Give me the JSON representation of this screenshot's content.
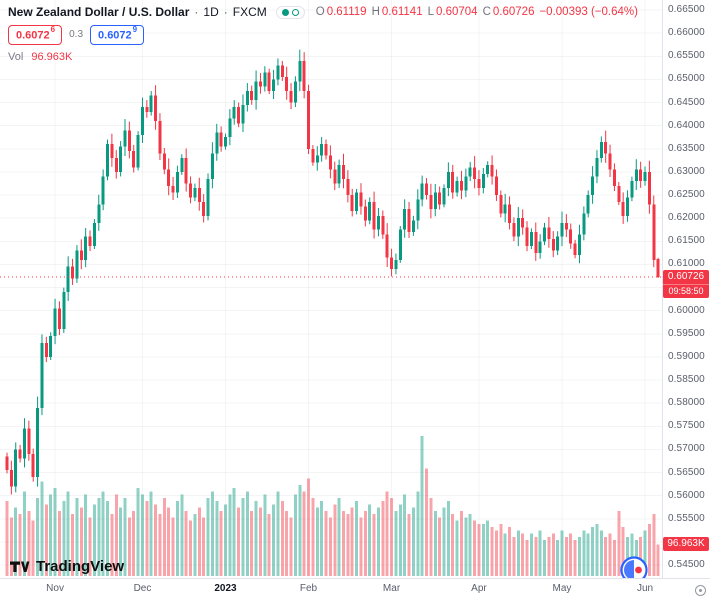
{
  "header": {
    "symbol": "New Zealand Dollar / U.S. Dollar",
    "separator": "·",
    "interval": "1D",
    "exchange": "FXCM",
    "ohlc": {
      "o_label": "O",
      "o": "0.61119",
      "h_label": "H",
      "h": "0.61141",
      "l_label": "L",
      "l": "0.60704",
      "c_label": "C",
      "c": "0.60726",
      "change": "−0.00393 (−0.64%)"
    },
    "bid": {
      "main": "0.6072",
      "sup": "6"
    },
    "spread": "0.3",
    "ask": {
      "main": "0.6072",
      "sup": "9"
    },
    "volume": {
      "label": "Vol",
      "value": "96.963K"
    }
  },
  "price_axis": {
    "labels": [
      "0.66500",
      "0.66000",
      "0.65500",
      "0.65000",
      "0.64500",
      "0.64000",
      "0.63500",
      "0.63000",
      "0.62500",
      "0.62000",
      "0.61500",
      "0.61000",
      "0.60500",
      "0.60000",
      "0.59500",
      "0.59000",
      "0.58500",
      "0.58000",
      "0.57500",
      "0.57000",
      "0.56500",
      "0.56000",
      "0.55500",
      "0.55000",
      "0.54500"
    ],
    "current_price_label": "0.60726",
    "countdown": "09:58:50"
  },
  "volume_axis": {
    "current_volume_label": "96.963K"
  },
  "watermark": {
    "brand": "TradingView"
  },
  "colors": {
    "up": "#089981",
    "down": "#F23645",
    "volume_up": "rgba(8,153,129,0.45)",
    "volume_down": "rgba(242,54,69,0.45)",
    "accent_blue": "#2962FF",
    "tag_bg": "#F23645",
    "grid": "rgba(42,46,57,0.05)",
    "current_price_line": "#F23645"
  },
  "chart_data": {
    "type": "candlestick",
    "title": "New Zealand Dollar / U.S. Dollar",
    "interval": "1D",
    "venue": "FXCM",
    "price_range_visible": [
      0.545,
      0.665
    ],
    "grid_step": 0.005,
    "first_open": 0.5685,
    "closes": [
      0.5655,
      0.562,
      0.57,
      0.568,
      0.5745,
      0.569,
      0.564,
      0.579,
      0.593,
      0.59,
      0.5945,
      0.6005,
      0.596,
      0.604,
      0.6095,
      0.607,
      0.613,
      0.611,
      0.616,
      0.614,
      0.619,
      0.623,
      0.629,
      0.636,
      0.633,
      0.63,
      0.6355,
      0.639,
      0.6345,
      0.631,
      0.638,
      0.644,
      0.643,
      0.6465,
      0.641,
      0.634,
      0.6305,
      0.627,
      0.6255,
      0.63,
      0.633,
      0.6275,
      0.6245,
      0.6265,
      0.6235,
      0.6205,
      0.6285,
      0.634,
      0.6385,
      0.6355,
      0.6375,
      0.6415,
      0.644,
      0.6405,
      0.6445,
      0.6475,
      0.6455,
      0.6495,
      0.6485,
      0.6515,
      0.6475,
      0.65,
      0.653,
      0.6505,
      0.6475,
      0.645,
      0.6495,
      0.654,
      0.6475,
      0.635,
      0.632,
      0.6335,
      0.636,
      0.6335,
      0.6305,
      0.6275,
      0.6315,
      0.6285,
      0.625,
      0.6215,
      0.6255,
      0.6225,
      0.6195,
      0.6235,
      0.6175,
      0.6205,
      0.6165,
      0.6115,
      0.609,
      0.611,
      0.6175,
      0.622,
      0.617,
      0.6195,
      0.624,
      0.6275,
      0.625,
      0.622,
      0.6255,
      0.623,
      0.6265,
      0.63,
      0.6255,
      0.628,
      0.626,
      0.629,
      0.631,
      0.6285,
      0.6265,
      0.6295,
      0.6315,
      0.629,
      0.625,
      0.621,
      0.623,
      0.619,
      0.616,
      0.62,
      0.618,
      0.614,
      0.617,
      0.6125,
      0.615,
      0.618,
      0.6155,
      0.613,
      0.616,
      0.619,
      0.6175,
      0.6145,
      0.612,
      0.6165,
      0.621,
      0.625,
      0.629,
      0.633,
      0.6365,
      0.634,
      0.6305,
      0.627,
      0.6235,
      0.6205,
      0.6245,
      0.628,
      0.6305,
      0.628,
      0.63,
      0.623,
      0.611,
      0.60726
    ],
    "volumes_k": [
      230,
      180,
      210,
      190,
      260,
      200,
      170,
      240,
      290,
      220,
      250,
      270,
      200,
      230,
      260,
      190,
      240,
      210,
      250,
      180,
      220,
      240,
      260,
      230,
      190,
      250,
      210,
      240,
      180,
      200,
      270,
      250,
      230,
      260,
      220,
      190,
      240,
      210,
      180,
      230,
      250,
      200,
      170,
      190,
      210,
      180,
      240,
      260,
      230,
      200,
      220,
      250,
      270,
      210,
      240,
      260,
      200,
      230,
      210,
      250,
      190,
      220,
      260,
      230,
      200,
      180,
      250,
      280,
      260,
      300,
      240,
      210,
      230,
      200,
      180,
      220,
      240,
      200,
      190,
      210,
      230,
      180,
      200,
      220,
      190,
      210,
      230,
      260,
      240,
      200,
      220,
      250,
      190,
      210,
      260,
      430,
      330,
      240,
      200,
      180,
      210,
      230,
      190,
      170,
      200,
      180,
      190,
      170,
      160,
      160,
      170,
      150,
      140,
      160,
      130,
      150,
      120,
      140,
      130,
      110,
      130,
      120,
      140,
      110,
      120,
      130,
      110,
      140,
      120,
      130,
      110,
      120,
      140,
      130,
      150,
      160,
      140,
      120,
      130,
      110,
      200,
      150,
      120,
      130,
      110,
      120,
      140,
      160,
      190,
      96.963
    ],
    "volume_scale_max_k": 430,
    "last_ohlc": {
      "open": 0.61119,
      "high": 0.61141,
      "low": 0.60704,
      "close": 0.60726
    },
    "current_price": 0.60726,
    "current_volume_k": 96.963,
    "change": -0.00393,
    "change_pct": -0.64,
    "months": [
      {
        "label": "Nov",
        "index": 11
      },
      {
        "label": "Dec",
        "index": 31
      },
      {
        "label": "2023",
        "index": 50
      },
      {
        "label": "Feb",
        "index": 69
      },
      {
        "label": "Mar",
        "index": 88
      },
      {
        "label": "Apr",
        "index": 108
      },
      {
        "label": "May",
        "index": 127
      },
      {
        "label": "Jun",
        "index": 146
      }
    ]
  }
}
